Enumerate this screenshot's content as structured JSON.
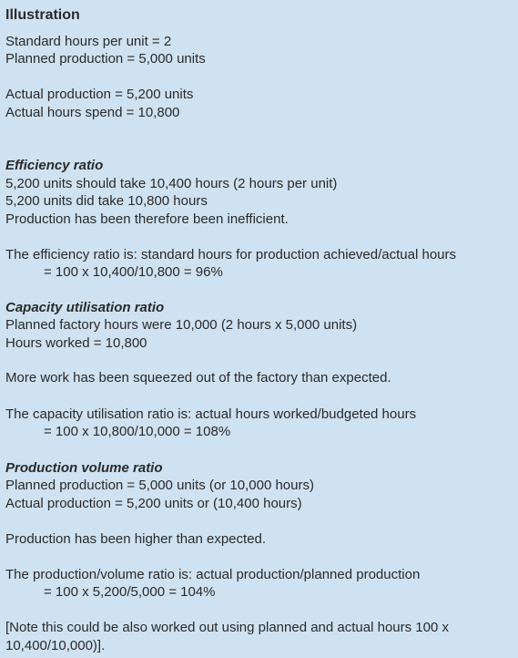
{
  "title": "Illustration",
  "given": [
    "Standard hours per unit = 2",
    "Planned production = 5,000 units",
    "Actual production = 5,200 units",
    "Actual hours spend = 10,800"
  ],
  "sections": [
    {
      "heading": "Efficiency ratio",
      "lines": [
        "5,200 units should take 10,400 hours (2 hours per unit)",
        "5,200 units did take 10,800 hours",
        "Production has been therefore been inefficient.",
        "The efficiency ratio is: standard hours for production achieved/actual hours",
        "= 100 x 10,400/10,800 = 96%"
      ]
    },
    {
      "heading": "Capacity utilisation ratio",
      "lines": [
        "Planned factory hours were 10,000 (2 hours x 5,000 units)",
        "Hours worked = 10,800",
        "More work has been squeezed out of the factory than expected.",
        "The capacity utilisation ratio is: actual hours worked/budgeted hours",
        "= 100 x 10,800/10,000 = 108%"
      ]
    },
    {
      "heading": "Production volume ratio",
      "lines": [
        "Planned production = 5,000 units (or 10,000 hours)",
        "Actual production = 5,200 units or (10,400 hours)",
        "Production has been higher than expected.",
        "The production/volume ratio is: actual production/planned production",
        "= 100 x 5,200/5,000 = 104%",
        "[Note this could be also worked out using planned and actual hours 100 x",
        "10,400/10,000)]."
      ]
    }
  ]
}
